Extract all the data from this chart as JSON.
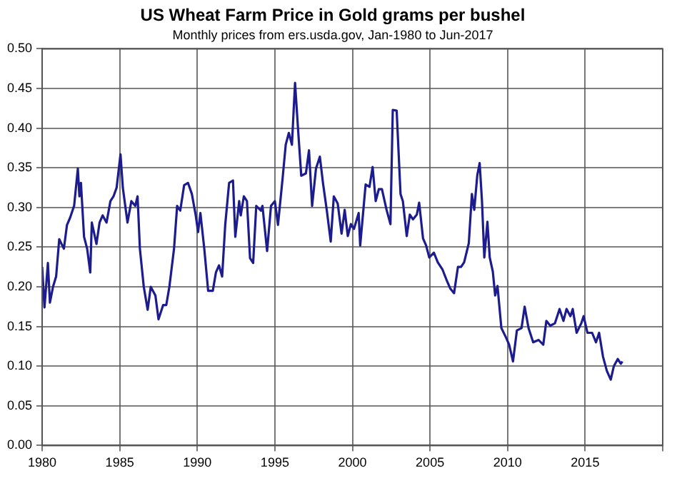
{
  "chart_data": {
    "type": "line",
    "title": "US Wheat Farm Price in Gold grams per bushel",
    "subtitle": "Monthly prices from ers.usda.gov, Jan-1980 to Jun-2017",
    "xlim": [
      1980,
      2020
    ],
    "xticks": [
      1980,
      1985,
      1990,
      1995,
      2000,
      2005,
      2010,
      2015,
      {
        "value": 2020,
        "label": null
      }
    ],
    "ylim": [
      0,
      0.5
    ],
    "yticks": [
      {
        "value": 0,
        "label": "0.00"
      },
      {
        "value": 0.05,
        "label": "0.05"
      },
      {
        "value": 0.1,
        "label": "0.10"
      },
      {
        "value": 0.15,
        "label": "0.15"
      },
      {
        "value": 0.2,
        "label": "0.20"
      },
      {
        "value": 0.25,
        "label": "0.25"
      },
      {
        "value": 0.3,
        "label": "0.30"
      },
      {
        "value": 0.35,
        "label": "0.35"
      },
      {
        "value": 0.4,
        "label": "0.40"
      },
      {
        "value": 0.45,
        "label": "0.45"
      },
      {
        "value": 0.5,
        "label": "0.50"
      }
    ],
    "grid": true,
    "legend": false,
    "marker": "none",
    "line_style": "solid",
    "series": [
      {
        "color": "#1c1c8f",
        "x": [
          1980.0,
          1980.15,
          1980.37,
          1980.5,
          1980.7,
          1980.9,
          1981.1,
          1981.4,
          1981.6,
          1981.8,
          1982.06,
          1982.3,
          1982.4,
          1982.5,
          1982.7,
          1982.9,
          1983.1,
          1983.2,
          1983.5,
          1983.7,
          1983.9,
          1984.15,
          1984.4,
          1984.6,
          1984.8,
          1985.05,
          1985.2,
          1985.5,
          1985.75,
          1986.0,
          1986.15,
          1986.3,
          1986.55,
          1986.8,
          1987.0,
          1987.3,
          1987.5,
          1987.8,
          1988.0,
          1988.2,
          1988.5,
          1988.7,
          1988.9,
          1989.15,
          1989.4,
          1989.65,
          1989.9,
          1990.05,
          1990.2,
          1990.45,
          1990.7,
          1991.0,
          1991.2,
          1991.4,
          1991.6,
          1991.8,
          1992.05,
          1992.3,
          1992.45,
          1992.7,
          1992.8,
          1993.0,
          1993.2,
          1993.4,
          1993.6,
          1993.8,
          1994.1,
          1994.2,
          1994.5,
          1994.75,
          1995.0,
          1995.2,
          1995.5,
          1995.7,
          1995.9,
          1996.1,
          1996.3,
          1996.5,
          1996.7,
          1997.0,
          1997.2,
          1997.4,
          1997.65,
          1997.9,
          1998.1,
          1998.35,
          1998.6,
          1998.8,
          1999.05,
          1999.3,
          1999.5,
          1999.7,
          1999.9,
          2000.1,
          2000.4,
          2000.5,
          2000.85,
          2001.1,
          2001.3,
          2001.5,
          2001.7,
          2001.9,
          2002.2,
          2002.45,
          2002.6,
          2002.85,
          2003.1,
          2003.25,
          2003.5,
          2003.7,
          2003.9,
          2004.15,
          2004.3,
          2004.55,
          2004.75,
          2004.95,
          2005.25,
          2005.5,
          2005.8,
          2006.1,
          2006.3,
          2006.55,
          2006.8,
          2007.0,
          2007.2,
          2007.5,
          2007.7,
          2007.85,
          2008.05,
          2008.2,
          2008.35,
          2008.5,
          2008.7,
          2008.85,
          2009.05,
          2009.2,
          2009.35,
          2009.6,
          2009.9,
          2010.1,
          2010.35,
          2010.6,
          2010.9,
          2011.1,
          2011.35,
          2011.65,
          2012.0,
          2012.3,
          2012.5,
          2012.75,
          2013.05,
          2013.35,
          2013.6,
          2013.8,
          2014.05,
          2014.2,
          2014.45,
          2014.75,
          2014.9,
          2015.15,
          2015.45,
          2015.7,
          2015.9,
          2016.15,
          2016.4,
          2016.65,
          2016.85,
          2017.1,
          2017.3,
          2017.4
        ],
        "values": [
          0.225,
          0.174,
          0.23,
          0.18,
          0.2,
          0.213,
          0.26,
          0.248,
          0.278,
          0.287,
          0.302,
          0.349,
          0.314,
          0.331,
          0.263,
          0.248,
          0.218,
          0.281,
          0.254,
          0.281,
          0.29,
          0.281,
          0.308,
          0.314,
          0.325,
          0.367,
          0.325,
          0.281,
          0.308,
          0.302,
          0.314,
          0.248,
          0.2,
          0.171,
          0.2,
          0.189,
          0.159,
          0.177,
          0.177,
          0.2,
          0.248,
          0.302,
          0.296,
          0.328,
          0.331,
          0.317,
          0.29,
          0.269,
          0.293,
          0.248,
          0.195,
          0.195,
          0.218,
          0.227,
          0.213,
          0.278,
          0.331,
          0.334,
          0.263,
          0.308,
          0.29,
          0.314,
          0.308,
          0.236,
          0.23,
          0.302,
          0.296,
          0.302,
          0.245,
          0.302,
          0.308,
          0.278,
          0.337,
          0.379,
          0.394,
          0.379,
          0.457,
          0.397,
          0.34,
          0.343,
          0.372,
          0.302,
          0.349,
          0.364,
          0.331,
          0.296,
          0.257,
          0.314,
          0.305,
          0.267,
          0.297,
          0.264,
          0.279,
          0.273,
          0.293,
          0.252,
          0.329,
          0.326,
          0.351,
          0.308,
          0.323,
          0.323,
          0.297,
          0.279,
          0.423,
          0.422,
          0.317,
          0.308,
          0.264,
          0.291,
          0.285,
          0.291,
          0.306,
          0.261,
          0.252,
          0.237,
          0.243,
          0.231,
          0.222,
          0.207,
          0.198,
          0.192,
          0.225,
          0.225,
          0.231,
          0.255,
          0.317,
          0.297,
          0.341,
          0.356,
          0.308,
          0.237,
          0.282,
          0.237,
          0.219,
          0.189,
          0.201,
          0.148,
          0.136,
          0.127,
          0.106,
          0.145,
          0.148,
          0.175,
          0.148,
          0.13,
          0.133,
          0.127,
          0.157,
          0.151,
          0.154,
          0.172,
          0.157,
          0.172,
          0.163,
          0.172,
          0.142,
          0.154,
          0.163,
          0.142,
          0.142,
          0.13,
          0.142,
          0.112,
          0.094,
          0.083,
          0.1,
          0.109,
          0.103,
          0.106
        ]
      }
    ]
  }
}
